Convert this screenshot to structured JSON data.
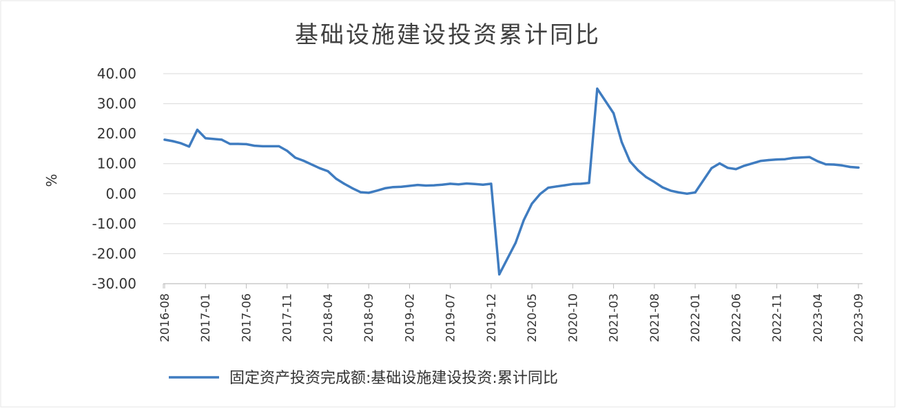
{
  "chart_data": {
    "type": "line",
    "title": "基础设施建设投资累计同比",
    "ylabel": "%",
    "xlabel": "",
    "ylim": [
      -30,
      40
    ],
    "yticks": [
      "40.00",
      "30.00",
      "20.00",
      "10.00",
      "0.00",
      "-10.00",
      "-20.00",
      "-30.00"
    ],
    "ytick_values": [
      40,
      30,
      20,
      10,
      0,
      -10,
      -20,
      -30
    ],
    "xticks": [
      "2016-08",
      "2017-01",
      "2017-06",
      "2017-11",
      "2018-04",
      "2018-09",
      "2019-02",
      "2019-07",
      "2019-12",
      "2020-05",
      "2020-10",
      "2021-03",
      "2021-08",
      "2022-01",
      "2022-06",
      "2022-11",
      "2023-04",
      "2023-09"
    ],
    "grid": true,
    "legend_position": "bottom",
    "colors": {
      "series": "#3f7cc0",
      "grid": "#d9d9d9",
      "axis": "#bfbfbf"
    },
    "series": [
      {
        "name": "固定资产投资完成额:基础设施建设投资:累计同比",
        "x": [
          "2016-08",
          "2016-09",
          "2016-10",
          "2016-11",
          "2016-12",
          "2017-01",
          "2017-03",
          "2017-04",
          "2017-05",
          "2017-06",
          "2017-07",
          "2017-08",
          "2017-09",
          "2017-10",
          "2017-11",
          "2017-12",
          "2018-01",
          "2018-03",
          "2018-04",
          "2018-05",
          "2018-06",
          "2018-07",
          "2018-08",
          "2018-09",
          "2018-10",
          "2018-11",
          "2018-12",
          "2019-01",
          "2019-03",
          "2019-04",
          "2019-05",
          "2019-06",
          "2019-07",
          "2019-08",
          "2019-09",
          "2019-10",
          "2019-11",
          "2019-12",
          "2020-01",
          "2020-03",
          "2020-04",
          "2020-05",
          "2020-06",
          "2020-07",
          "2020-08",
          "2020-09",
          "2020-10",
          "2020-11",
          "2020-12",
          "2021-01",
          "2021-03",
          "2021-04",
          "2021-05",
          "2021-06",
          "2021-07",
          "2021-08",
          "2021-09",
          "2021-10",
          "2021-11",
          "2021-12",
          "2022-01",
          "2022-03",
          "2022-04",
          "2022-05",
          "2022-06",
          "2022-07",
          "2022-08",
          "2022-09",
          "2022-10",
          "2022-11",
          "2022-12",
          "2023-01",
          "2023-03",
          "2023-04",
          "2023-05",
          "2023-06",
          "2023-07",
          "2023-08",
          "2023-09"
        ],
        "values": [
          18.0,
          17.5,
          16.8,
          15.7,
          21.3,
          18.5,
          18.0,
          16.6,
          16.6,
          16.5,
          16.0,
          15.8,
          15.8,
          15.8,
          14.3,
          12.0,
          11.0,
          8.5,
          7.5,
          5.0,
          3.3,
          1.8,
          0.5,
          0.3,
          1.0,
          1.8,
          2.2,
          2.3,
          2.9,
          2.7,
          2.8,
          3.0,
          3.3,
          3.1,
          3.4,
          3.2,
          3.0,
          3.3,
          -26.9,
          -16.4,
          -8.8,
          -3.3,
          -0.1,
          2.0,
          2.4,
          2.8,
          3.2,
          3.3,
          3.6,
          35.0,
          26.8,
          17.2,
          10.8,
          7.8,
          5.5,
          3.9,
          2.1,
          1.0,
          0.4,
          0.0,
          0.4,
          8.5,
          10.1,
          8.6,
          8.2,
          9.3,
          10.1,
          10.9,
          11.2,
          11.4,
          11.5,
          11.9,
          12.2,
          10.8,
          9.8,
          9.7,
          9.4,
          8.9,
          8.7
        ]
      }
    ]
  }
}
